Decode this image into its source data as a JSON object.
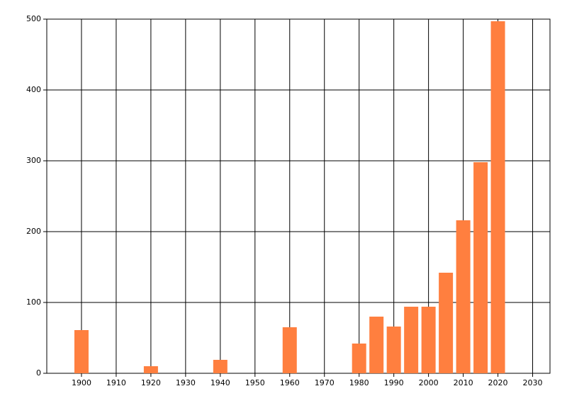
{
  "chart_data": {
    "type": "bar",
    "x": [
      1900,
      1920,
      1940,
      1960,
      1980,
      1985,
      1990,
      1995,
      2000,
      2005,
      2010,
      2015,
      2020
    ],
    "values": [
      61,
      10,
      19,
      65,
      42,
      80,
      66,
      94,
      94,
      142,
      216,
      298,
      497
    ],
    "color": "#ff7f3f",
    "xlim": [
      1890,
      2035
    ],
    "xticks": [
      1900,
      1910,
      1920,
      1930,
      1940,
      1950,
      1960,
      1970,
      1980,
      1990,
      2000,
      2010,
      2020,
      2030
    ],
    "ylim": [
      0,
      500
    ],
    "yticks": [
      0,
      100,
      200,
      300,
      400,
      500
    ],
    "grid": true
  }
}
